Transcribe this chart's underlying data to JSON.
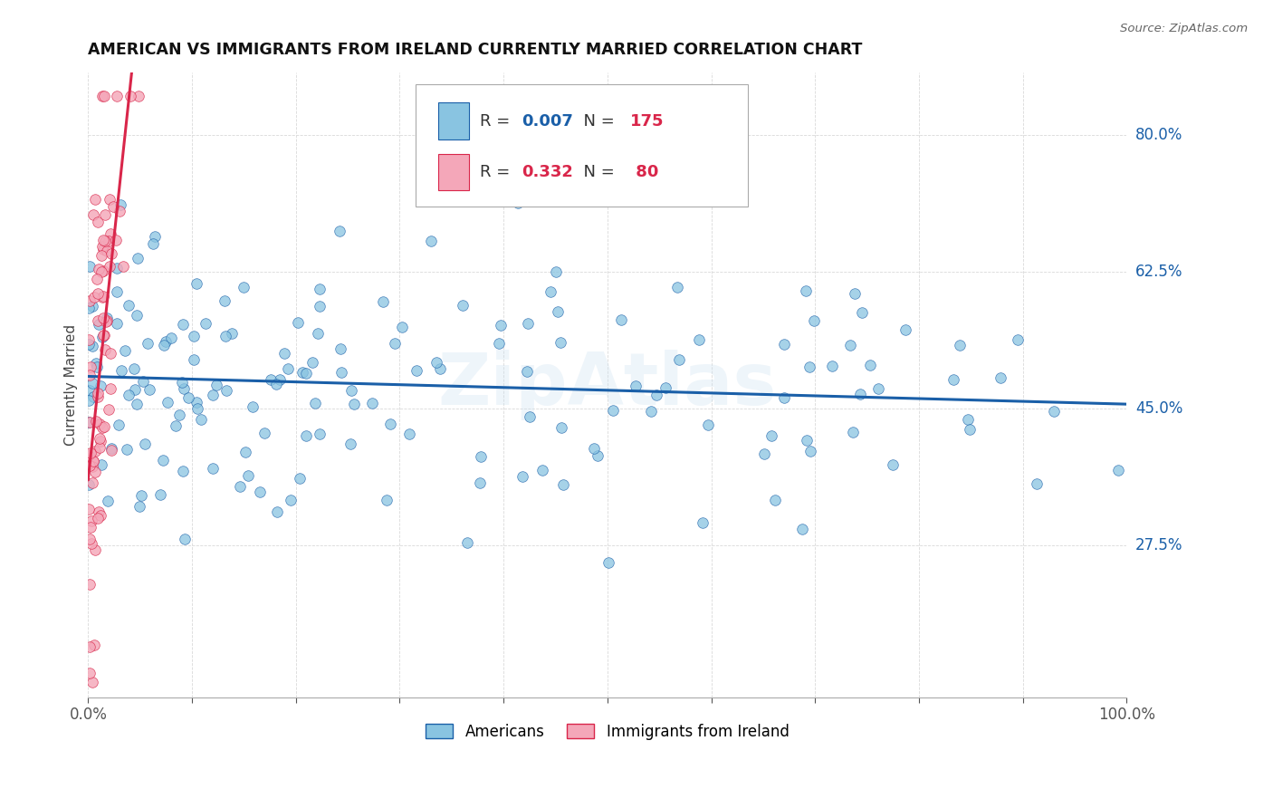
{
  "title": "AMERICAN VS IMMIGRANTS FROM IRELAND CURRENTLY MARRIED CORRELATION CHART",
  "source": "Source: ZipAtlas.com",
  "ylabel": "Currently Married",
  "xlim": [
    0.0,
    1.0
  ],
  "ylim": [
    0.08,
    0.88
  ],
  "watermark": "ZipAtlas",
  "dot_color_americans": "#89c4e1",
  "dot_color_ireland": "#f4a7b9",
  "trend_color_americans": "#1a5fa8",
  "trend_color_ireland": "#d9264a",
  "R_americans": 0.007,
  "R_ireland": 0.332,
  "N_americans": 175,
  "N_ireland": 80,
  "ytick_vals": [
    0.275,
    0.45,
    0.625,
    0.8
  ],
  "ytick_labels": [
    "27.5%",
    "45.0%",
    "62.5%",
    "80.0%"
  ],
  "grid_color": "#d9d9d9",
  "legend_R1": "0.007",
  "legend_N1": "175",
  "legend_R2": "0.332",
  "legend_N2": "80",
  "legend_label1": "Americans",
  "legend_label2": "Immigrants from Ireland"
}
